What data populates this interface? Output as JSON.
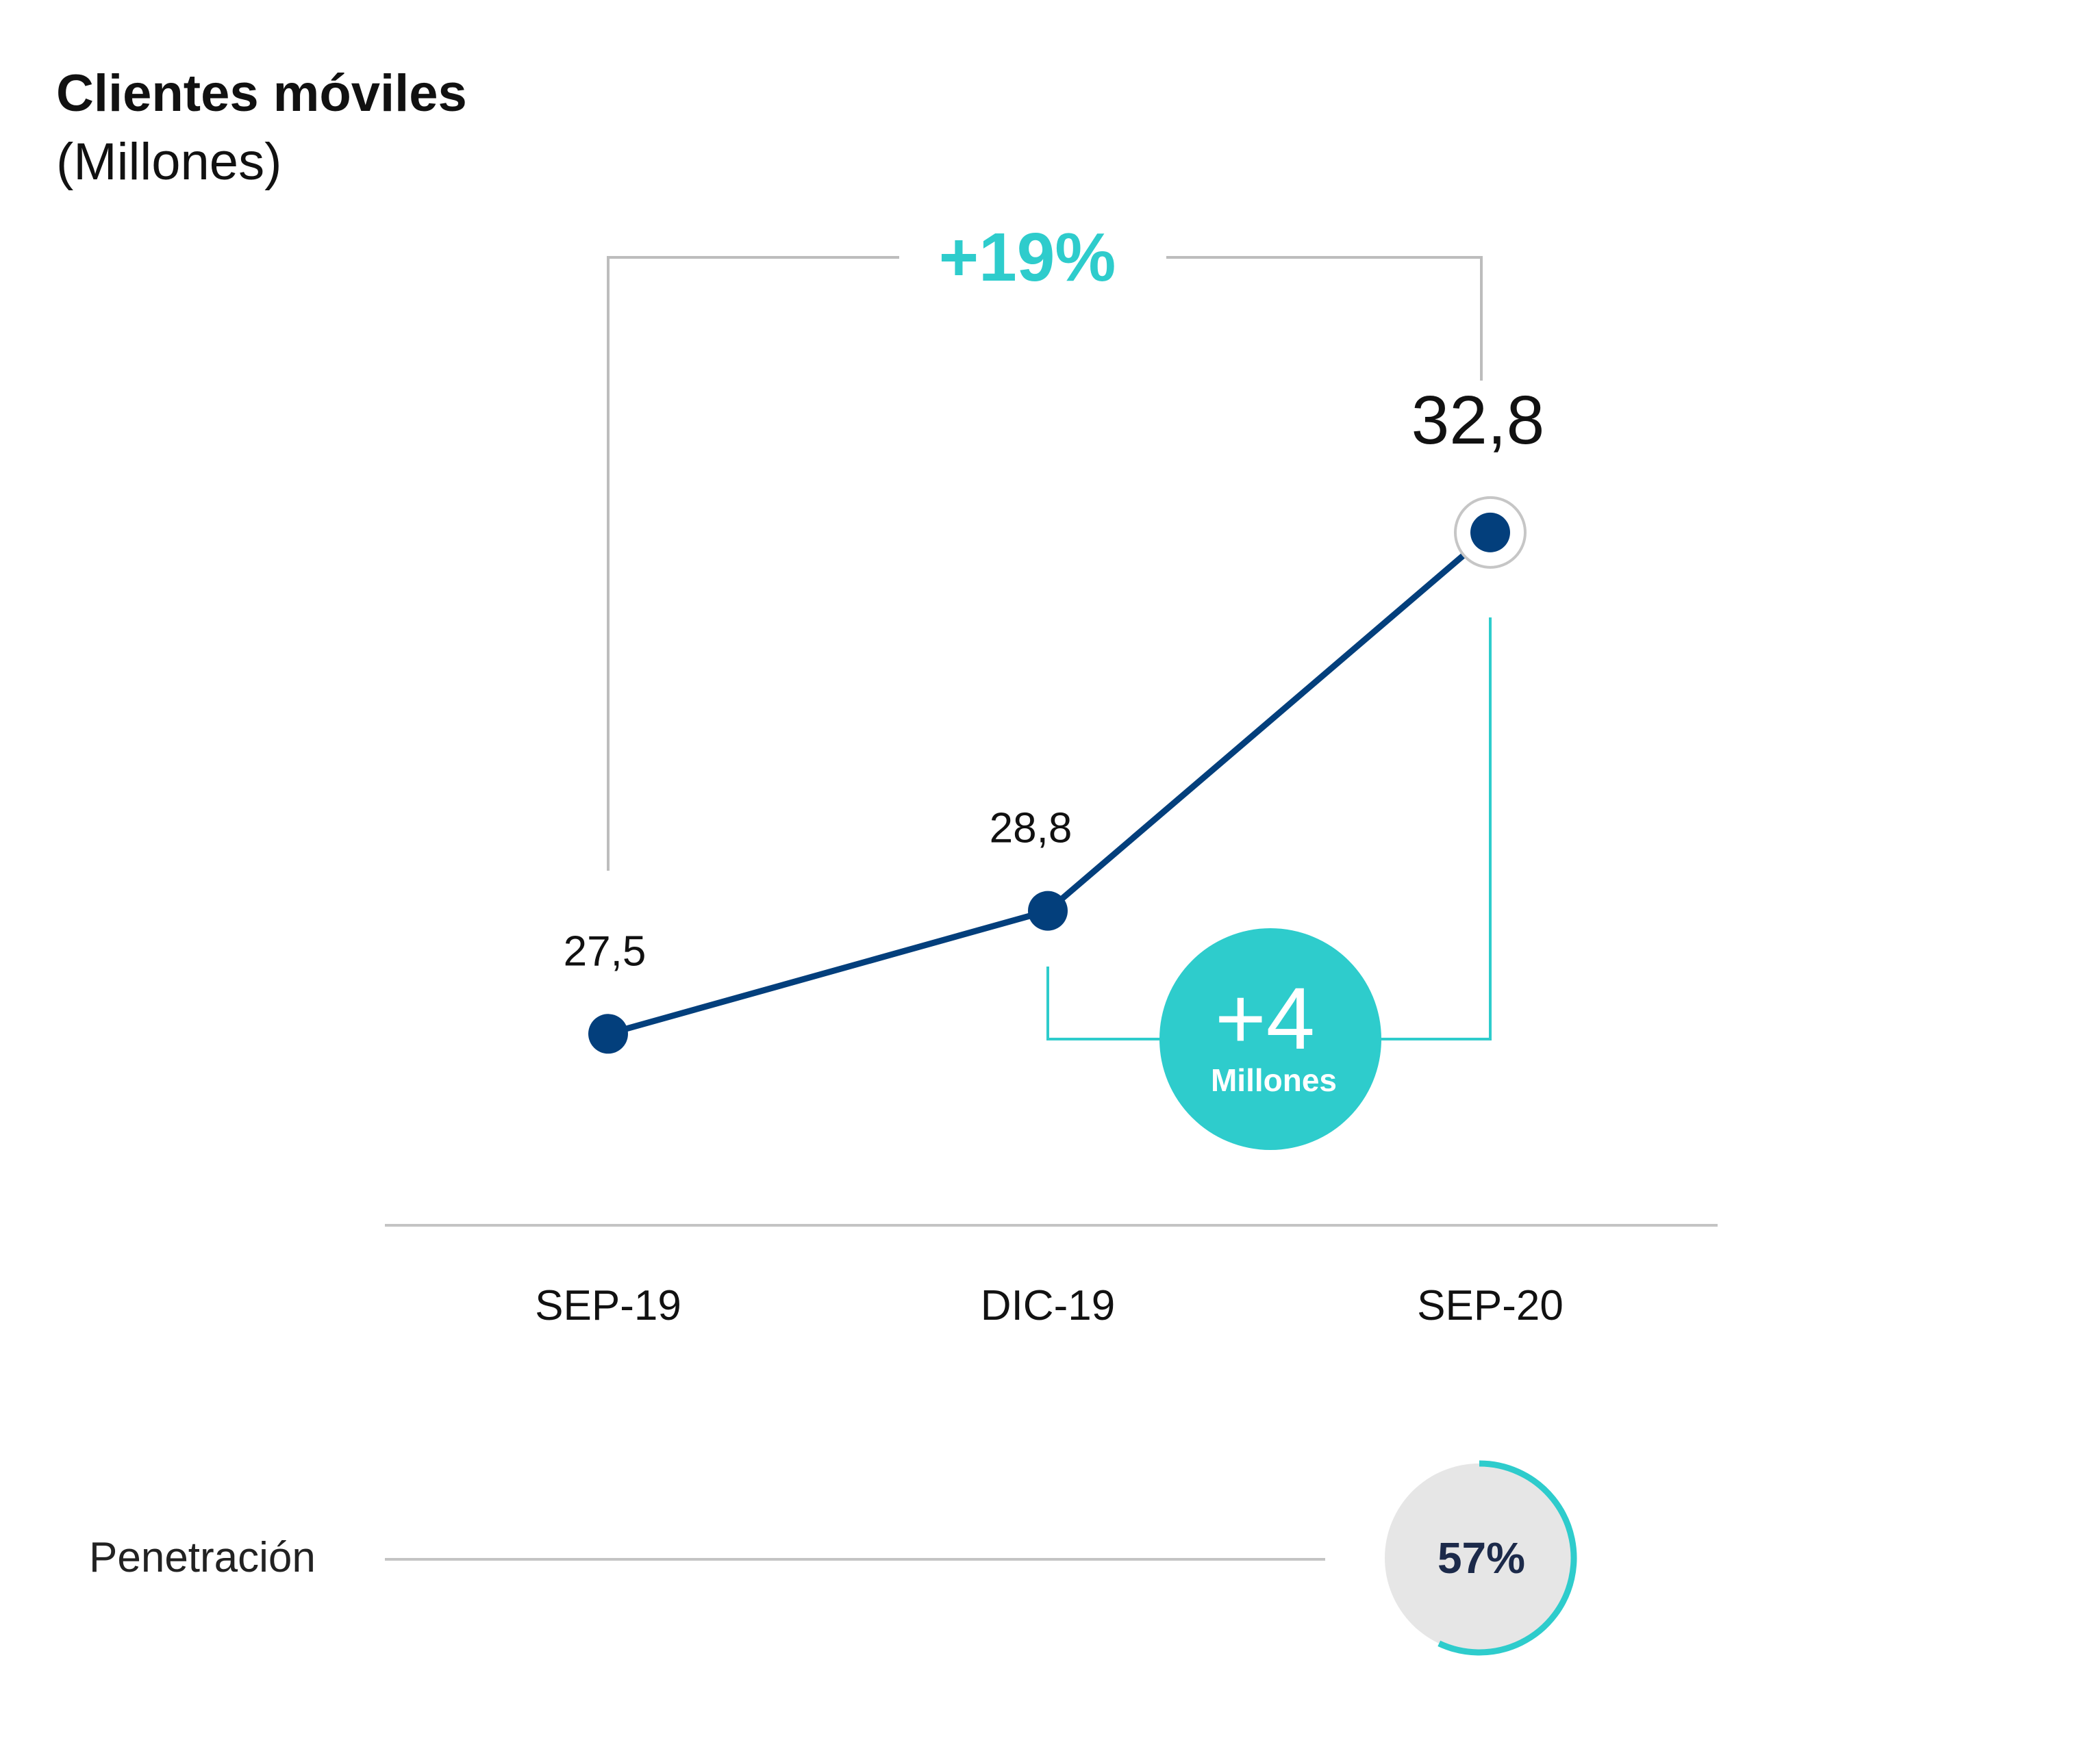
{
  "title": "Clientes móviles",
  "subtitle": "(Millones)",
  "colors": {
    "line": "#033f7c",
    "accent": "#2ecccc",
    "bracket": "#bdbdbd",
    "axis": "#c4c4c4",
    "text": "#111111",
    "penetration_text": "#1c2a4a",
    "penetration_bg": "#e6e6e6"
  },
  "growth_pct_label": "+19%",
  "delta": {
    "value_label": "+4",
    "unit_label": "Millones"
  },
  "chart_data": {
    "type": "line",
    "title": "Clientes móviles",
    "subtitle": "(Millones)",
    "categories": [
      "SEP-19",
      "DIC-19",
      "SEP-20"
    ],
    "series": [
      {
        "values": [
          27.5,
          28.8,
          32.8
        ],
        "labels": [
          "27,5",
          "28,8",
          "32,8"
        ]
      }
    ],
    "highlight_index": 2,
    "ylim": [
      24,
      34
    ],
    "grid": false,
    "annotations": [
      {
        "text": "+19%",
        "from": "SEP-19",
        "to": "SEP-20"
      },
      {
        "text": "+4 Millones",
        "from": "DIC-19",
        "to": "SEP-20"
      }
    ]
  },
  "penetration": {
    "label": "Penetración",
    "value": 0.57,
    "value_label": "57%"
  }
}
